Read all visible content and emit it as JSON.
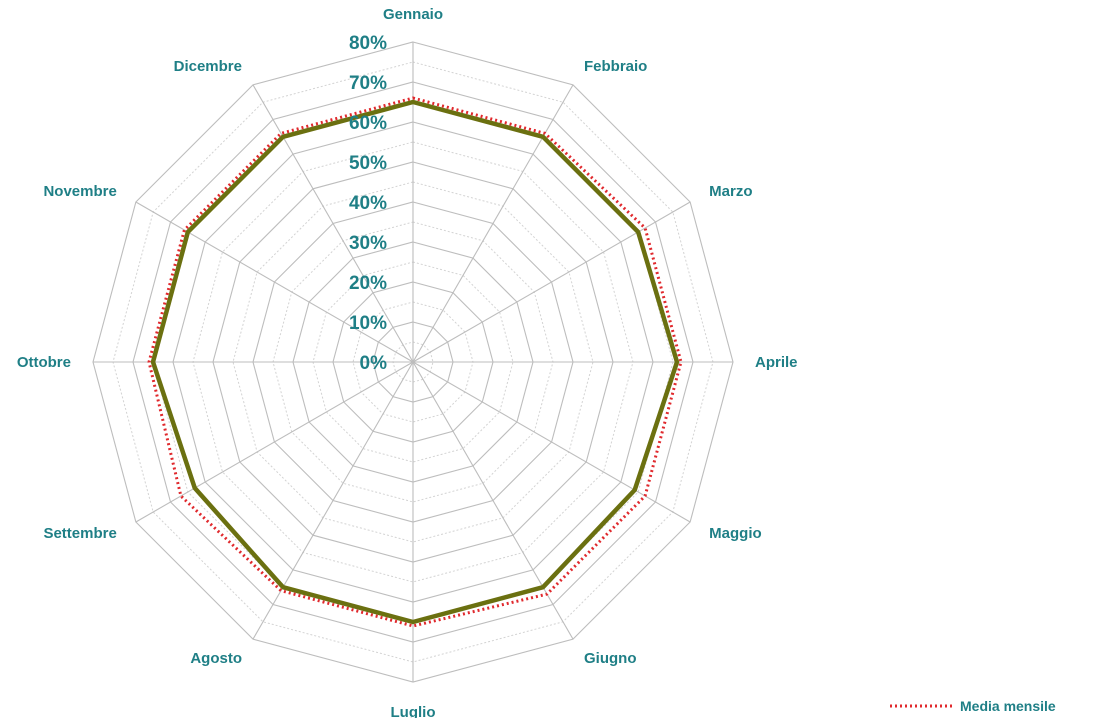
{
  "chart_data": {
    "type": "radar",
    "categories": [
      "Gennaio",
      "Febbraio",
      "Marzo",
      "Aprile",
      "Maggio",
      "Giugno",
      "Luglio",
      "Agosto",
      "Settembre",
      "Ottobre",
      "Novembre",
      "Dicembre"
    ],
    "rlim": [
      0,
      80
    ],
    "ticks": [
      "0%",
      "10%",
      "20%",
      "30%",
      "40%",
      "50%",
      "60%",
      "70%",
      "80%"
    ],
    "series": [
      {
        "values": [
          65,
          65,
          65,
          66,
          64,
          65,
          65,
          65,
          63,
          65,
          65,
          65
        ],
        "color": "#6b7010",
        "style": "solid"
      },
      {
        "name": "Media mensile",
        "values": [
          66,
          66,
          67,
          67,
          67,
          67,
          66,
          66,
          67,
          66,
          66,
          66
        ],
        "color": "#e0292d",
        "style": "dotted"
      }
    ],
    "legend": "bottom-right",
    "grid": true,
    "colors": {
      "labels": "#1f7f86",
      "grid": "#bdbdbd"
    }
  }
}
